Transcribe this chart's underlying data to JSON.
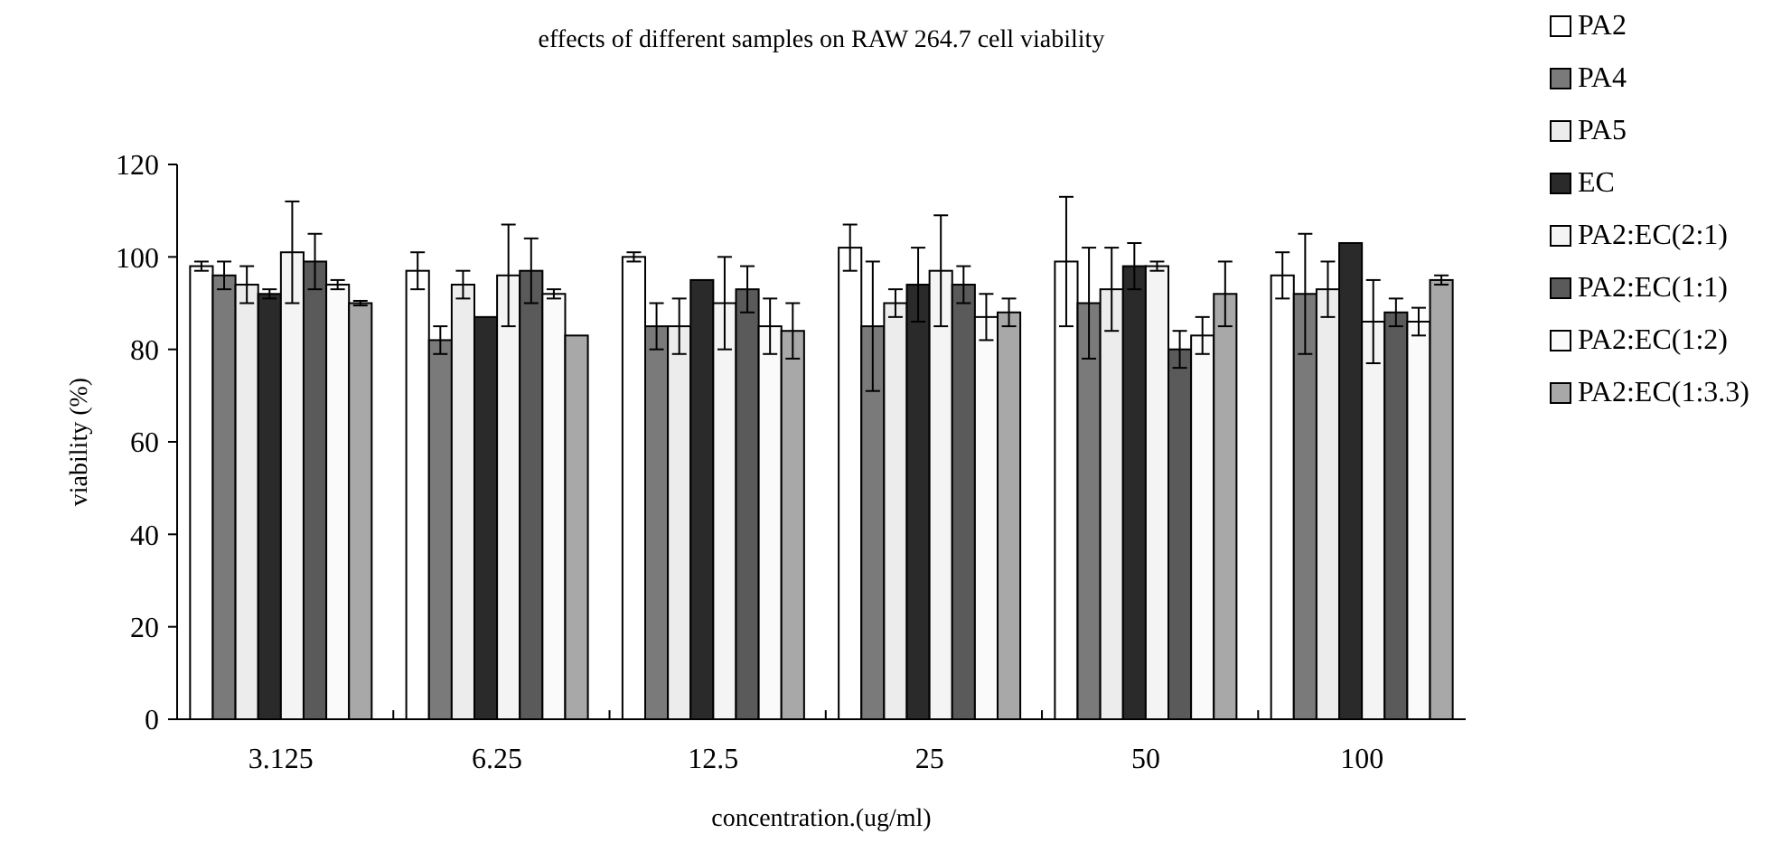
{
  "chart_data": {
    "type": "bar",
    "title": "effects of different samples on RAW 264.7 cell viability",
    "xlabel": "concentration.(ug/ml)",
    "ylabel": "viability (%)",
    "categories": [
      "3.125",
      "6.25",
      "12.5",
      "25",
      "50",
      "100"
    ],
    "ylim": [
      0,
      120
    ],
    "yticks": [
      0,
      20,
      40,
      60,
      80,
      100,
      120
    ],
    "grid": false,
    "legend": "right",
    "series": [
      {
        "name": "PA2",
        "color": "#ffffff",
        "values": [
          98,
          97,
          100,
          102,
          99,
          96
        ],
        "errors": [
          1,
          4,
          1,
          5,
          14,
          5
        ]
      },
      {
        "name": "PA4",
        "color": "#7a7a7a",
        "values": [
          96,
          82,
          85,
          85,
          90,
          92
        ],
        "errors": [
          3,
          3,
          5,
          14,
          12,
          13
        ]
      },
      {
        "name": "PA5",
        "color": "#ececec",
        "values": [
          94,
          94,
          85,
          90,
          93,
          93
        ],
        "errors": [
          4,
          3,
          6,
          3,
          9,
          6
        ]
      },
      {
        "name": "EC",
        "color": "#2a2a2a",
        "values": [
          92,
          87,
          95,
          94,
          98,
          103
        ],
        "errors": [
          1,
          null,
          null,
          8,
          5,
          null
        ]
      },
      {
        "name": "PA2:EC(2:1)",
        "color": "#f4f4f4",
        "values": [
          101,
          96,
          90,
          97,
          98,
          86
        ],
        "errors": [
          11,
          11,
          10,
          12,
          1,
          9
        ]
      },
      {
        "name": "PA2:EC(1:1)",
        "color": "#5a5a5a",
        "values": [
          99,
          97,
          93,
          94,
          80,
          88
        ],
        "errors": [
          6,
          7,
          5,
          4,
          4,
          3
        ]
      },
      {
        "name": "PA2:EC(1:2)",
        "color": "#fafafa",
        "values": [
          94,
          92,
          85,
          87,
          83,
          86
        ],
        "errors": [
          1,
          1,
          6,
          5,
          4,
          3
        ]
      },
      {
        "name": "PA2:EC(1:3.3)",
        "color": "#a8a8a8",
        "values": [
          90,
          83,
          84,
          88,
          92,
          95
        ],
        "errors": [
          0.5,
          null,
          6,
          3,
          7,
          1
        ]
      }
    ]
  }
}
